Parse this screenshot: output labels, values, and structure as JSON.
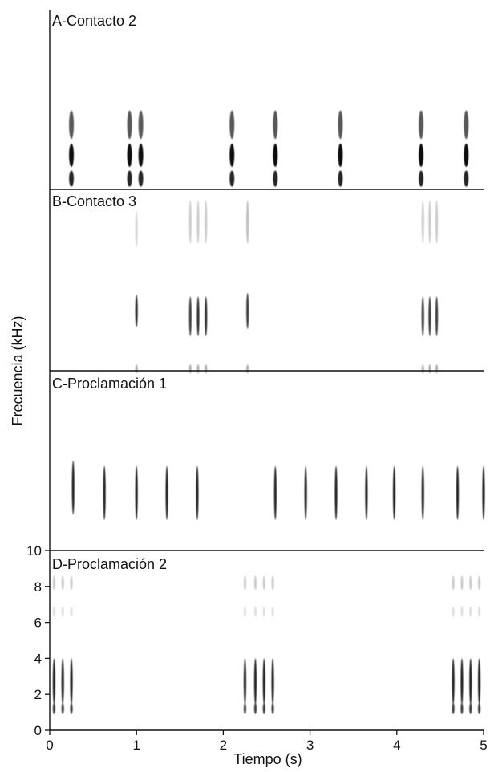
{
  "chart_data": {
    "type": "spectrogram",
    "xlabel": "Tiempo (s)",
    "ylabel": "Frecuencia (kHz)",
    "xlim": [
      0,
      5
    ],
    "ylim": [
      0,
      10
    ],
    "x_ticks": [
      0,
      1,
      2,
      3,
      4,
      5
    ],
    "y_ticks": [
      0,
      2,
      4,
      6,
      8,
      10
    ],
    "grid": false,
    "colormap": "#111111",
    "panels": [
      {
        "label": "A-Contacto 2",
        "notes": [
          {
            "t": 0.25,
            "w": 0.055,
            "bands": [
              [
                3.6,
                1.6,
                0.7
              ],
              [
                1.9,
                1.3,
                1.0
              ],
              [
                0.6,
                0.9,
                0.9
              ]
            ]
          },
          {
            "t": 0.92,
            "w": 0.055,
            "bands": [
              [
                3.6,
                1.6,
                0.7
              ],
              [
                1.9,
                1.3,
                1.0
              ],
              [
                0.6,
                0.9,
                0.9
              ]
            ]
          },
          {
            "t": 1.05,
            "w": 0.055,
            "bands": [
              [
                3.6,
                1.6,
                0.7
              ],
              [
                1.9,
                1.3,
                1.0
              ],
              [
                0.6,
                0.9,
                0.9
              ]
            ]
          },
          {
            "t": 2.1,
            "w": 0.055,
            "bands": [
              [
                3.6,
                1.6,
                0.7
              ],
              [
                1.9,
                1.3,
                1.0
              ],
              [
                0.6,
                0.9,
                0.9
              ]
            ]
          },
          {
            "t": 2.6,
            "w": 0.055,
            "bands": [
              [
                3.6,
                1.6,
                0.7
              ],
              [
                1.9,
                1.3,
                1.0
              ],
              [
                0.6,
                0.9,
                0.9
              ]
            ]
          },
          {
            "t": 3.35,
            "w": 0.055,
            "bands": [
              [
                3.6,
                1.6,
                0.7
              ],
              [
                1.9,
                1.3,
                1.0
              ],
              [
                0.6,
                0.9,
                0.9
              ]
            ]
          },
          {
            "t": 4.28,
            "w": 0.055,
            "bands": [
              [
                3.6,
                1.6,
                0.7
              ],
              [
                1.9,
                1.3,
                1.0
              ],
              [
                0.6,
                0.9,
                0.9
              ]
            ]
          },
          {
            "t": 4.8,
            "w": 0.055,
            "bands": [
              [
                3.6,
                1.6,
                0.7
              ],
              [
                1.9,
                1.3,
                1.0
              ],
              [
                0.6,
                0.9,
                0.9
              ]
            ]
          }
        ]
      },
      {
        "label": "B-Contacto 3",
        "notes": [
          {
            "t": 1.0,
            "w": 0.018,
            "bands": [
              [
                3.3,
                1.8,
                0.85
              ],
              [
                7.8,
                2.0,
                0.15
              ],
              [
                0.1,
                0.5,
                0.3
              ]
            ]
          },
          {
            "t": 1.62,
            "w": 0.018,
            "bands": [
              [
                3.0,
                2.2,
                0.8
              ],
              [
                8.2,
                2.4,
                0.2
              ],
              [
                0.1,
                0.5,
                0.3
              ]
            ]
          },
          {
            "t": 1.71,
            "w": 0.018,
            "bands": [
              [
                3.0,
                2.2,
                0.85
              ],
              [
                8.2,
                2.4,
                0.2
              ],
              [
                0.1,
                0.5,
                0.3
              ]
            ]
          },
          {
            "t": 1.8,
            "w": 0.018,
            "bands": [
              [
                3.0,
                2.2,
                0.85
              ],
              [
                8.2,
                2.4,
                0.2
              ],
              [
                0.1,
                0.5,
                0.3
              ]
            ]
          },
          {
            "t": 2.28,
            "w": 0.018,
            "bands": [
              [
                3.3,
                2.0,
                0.8
              ],
              [
                8.2,
                2.4,
                0.25
              ],
              [
                0.1,
                0.5,
                0.3
              ]
            ]
          },
          {
            "t": 4.3,
            "w": 0.018,
            "bands": [
              [
                3.0,
                2.2,
                0.8
              ],
              [
                8.2,
                2.4,
                0.2
              ],
              [
                0.1,
                0.5,
                0.3
              ]
            ]
          },
          {
            "t": 4.38,
            "w": 0.018,
            "bands": [
              [
                3.0,
                2.2,
                0.8
              ],
              [
                8.2,
                2.4,
                0.2
              ],
              [
                0.1,
                0.5,
                0.3
              ]
            ]
          },
          {
            "t": 4.46,
            "w": 0.018,
            "bands": [
              [
                3.0,
                2.2,
                0.8
              ],
              [
                8.2,
                2.4,
                0.2
              ],
              [
                0.1,
                0.5,
                0.3
              ]
            ]
          }
        ]
      },
      {
        "label": "C-Proclamación 1",
        "notes": [
          {
            "t": 0.27,
            "w": 0.02,
            "bands": [
              [
                3.5,
                3.0,
                0.9
              ]
            ]
          },
          {
            "t": 0.63,
            "w": 0.02,
            "bands": [
              [
                3.2,
                3.0,
                0.9
              ]
            ]
          },
          {
            "t": 1.0,
            "w": 0.02,
            "bands": [
              [
                3.2,
                3.0,
                0.9
              ]
            ]
          },
          {
            "t": 1.35,
            "w": 0.02,
            "bands": [
              [
                3.2,
                3.0,
                0.9
              ]
            ]
          },
          {
            "t": 1.7,
            "w": 0.02,
            "bands": [
              [
                3.2,
                3.0,
                0.9
              ]
            ]
          },
          {
            "t": 2.6,
            "w": 0.02,
            "bands": [
              [
                3.2,
                3.0,
                0.9
              ]
            ]
          },
          {
            "t": 2.95,
            "w": 0.02,
            "bands": [
              [
                3.2,
                3.0,
                0.9
              ]
            ]
          },
          {
            "t": 3.3,
            "w": 0.02,
            "bands": [
              [
                3.2,
                3.0,
                0.9
              ]
            ]
          },
          {
            "t": 3.65,
            "w": 0.02,
            "bands": [
              [
                3.2,
                3.0,
                0.9
              ]
            ]
          },
          {
            "t": 3.97,
            "w": 0.02,
            "bands": [
              [
                3.2,
                3.0,
                0.9
              ]
            ]
          },
          {
            "t": 4.3,
            "w": 0.02,
            "bands": [
              [
                3.2,
                3.0,
                0.9
              ]
            ]
          },
          {
            "t": 4.7,
            "w": 0.02,
            "bands": [
              [
                3.2,
                3.0,
                0.9
              ]
            ]
          },
          {
            "t": 5.0,
            "w": 0.02,
            "bands": [
              [
                3.2,
                3.0,
                0.9
              ]
            ]
          }
        ]
      },
      {
        "label": "D-Proclamación 2",
        "notes": [
          {
            "t": 0.05,
            "w": 0.025,
            "bands": [
              [
                2.7,
                2.6,
                0.9
              ],
              [
                1.2,
                0.6,
                0.8
              ],
              [
                8.2,
                0.8,
                0.2
              ],
              [
                6.6,
                0.6,
                0.12
              ]
            ]
          },
          {
            "t": 0.15,
            "w": 0.025,
            "bands": [
              [
                2.7,
                2.6,
                0.9
              ],
              [
                1.2,
                0.6,
                0.8
              ],
              [
                8.2,
                0.8,
                0.2
              ],
              [
                6.6,
                0.6,
                0.12
              ]
            ]
          },
          {
            "t": 0.25,
            "w": 0.025,
            "bands": [
              [
                2.7,
                2.6,
                0.9
              ],
              [
                1.2,
                0.6,
                0.8
              ],
              [
                8.2,
                0.8,
                0.2
              ],
              [
                6.6,
                0.6,
                0.12
              ]
            ]
          },
          {
            "t": 2.25,
            "w": 0.025,
            "bands": [
              [
                2.7,
                2.6,
                0.9
              ],
              [
                1.2,
                0.6,
                0.8
              ],
              [
                8.2,
                0.8,
                0.2
              ],
              [
                6.6,
                0.6,
                0.12
              ]
            ]
          },
          {
            "t": 2.37,
            "w": 0.025,
            "bands": [
              [
                2.7,
                2.6,
                0.9
              ],
              [
                1.2,
                0.6,
                0.8
              ],
              [
                8.2,
                0.8,
                0.2
              ],
              [
                6.6,
                0.6,
                0.12
              ]
            ]
          },
          {
            "t": 2.47,
            "w": 0.025,
            "bands": [
              [
                2.7,
                2.6,
                0.9
              ],
              [
                1.2,
                0.6,
                0.8
              ],
              [
                8.2,
                0.8,
                0.2
              ],
              [
                6.6,
                0.6,
                0.12
              ]
            ]
          },
          {
            "t": 2.57,
            "w": 0.025,
            "bands": [
              [
                2.7,
                2.6,
                0.9
              ],
              [
                1.2,
                0.6,
                0.8
              ],
              [
                8.2,
                0.8,
                0.2
              ],
              [
                6.6,
                0.6,
                0.12
              ]
            ]
          },
          {
            "t": 4.65,
            "w": 0.025,
            "bands": [
              [
                2.7,
                2.6,
                0.9
              ],
              [
                1.2,
                0.6,
                0.8
              ],
              [
                8.2,
                0.8,
                0.2
              ],
              [
                6.6,
                0.6,
                0.12
              ]
            ]
          },
          {
            "t": 4.75,
            "w": 0.025,
            "bands": [
              [
                2.7,
                2.6,
                0.9
              ],
              [
                1.2,
                0.6,
                0.8
              ],
              [
                8.2,
                0.8,
                0.2
              ],
              [
                6.6,
                0.6,
                0.12
              ]
            ]
          },
          {
            "t": 4.85,
            "w": 0.025,
            "bands": [
              [
                2.7,
                2.6,
                0.9
              ],
              [
                1.2,
                0.6,
                0.8
              ],
              [
                8.2,
                0.8,
                0.2
              ],
              [
                6.6,
                0.6,
                0.12
              ]
            ]
          },
          {
            "t": 4.95,
            "w": 0.025,
            "bands": [
              [
                2.7,
                2.6,
                0.9
              ],
              [
                1.2,
                0.6,
                0.8
              ],
              [
                8.2,
                0.8,
                0.2
              ],
              [
                6.6,
                0.6,
                0.12
              ]
            ]
          }
        ]
      }
    ]
  }
}
